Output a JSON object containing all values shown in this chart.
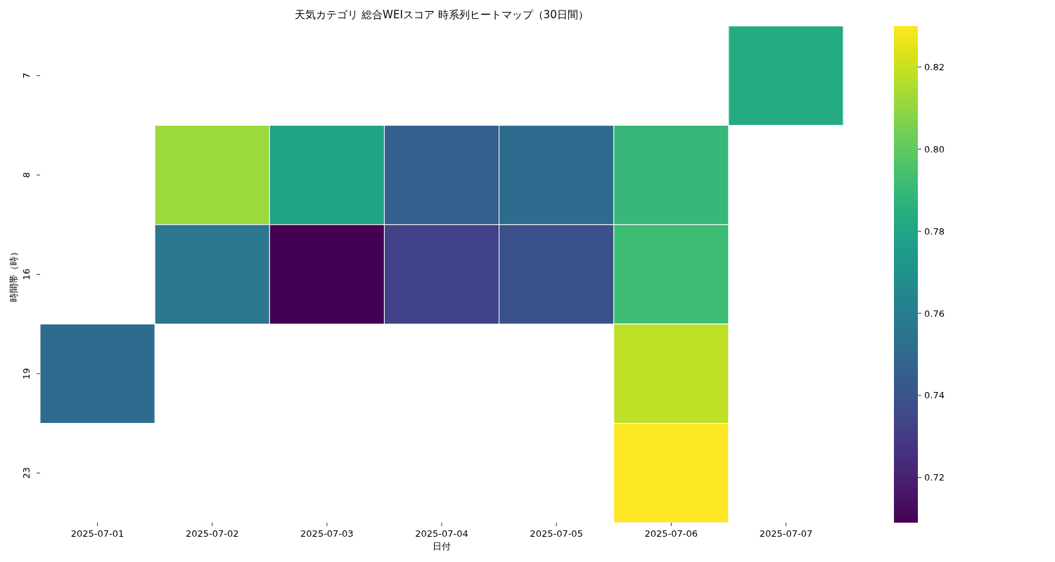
{
  "chart_data": {
    "type": "heatmap",
    "title": "天気カテゴリ 総合WEIスコア 時系列ヒートマップ（30日間）",
    "xlabel": "日付",
    "ylabel": "時間帯（時）",
    "categories": [
      "2025-07-01",
      "2025-07-02",
      "2025-07-03",
      "2025-07-04",
      "2025-07-05",
      "2025-07-06",
      "2025-07-07"
    ],
    "y_categories": [
      "7",
      "8",
      "16",
      "19",
      "23"
    ],
    "cells": [
      [
        null,
        null,
        null,
        null,
        null,
        null,
        0.783
      ],
      [
        null,
        0.812,
        0.779,
        0.745,
        0.751,
        0.79,
        null
      ],
      [
        null,
        0.757,
        0.709,
        0.733,
        0.739,
        0.792,
        null
      ],
      [
        0.751,
        null,
        null,
        null,
        null,
        0.818,
        null
      ],
      [
        null,
        null,
        null,
        null,
        null,
        0.83,
        null
      ]
    ],
    "clim": [
      0.709,
      0.83
    ],
    "cticks": [
      0.72,
      0.74,
      0.76,
      0.78,
      {
        "value": 0.8,
        "label": "0.80"
      },
      0.82
    ]
  }
}
